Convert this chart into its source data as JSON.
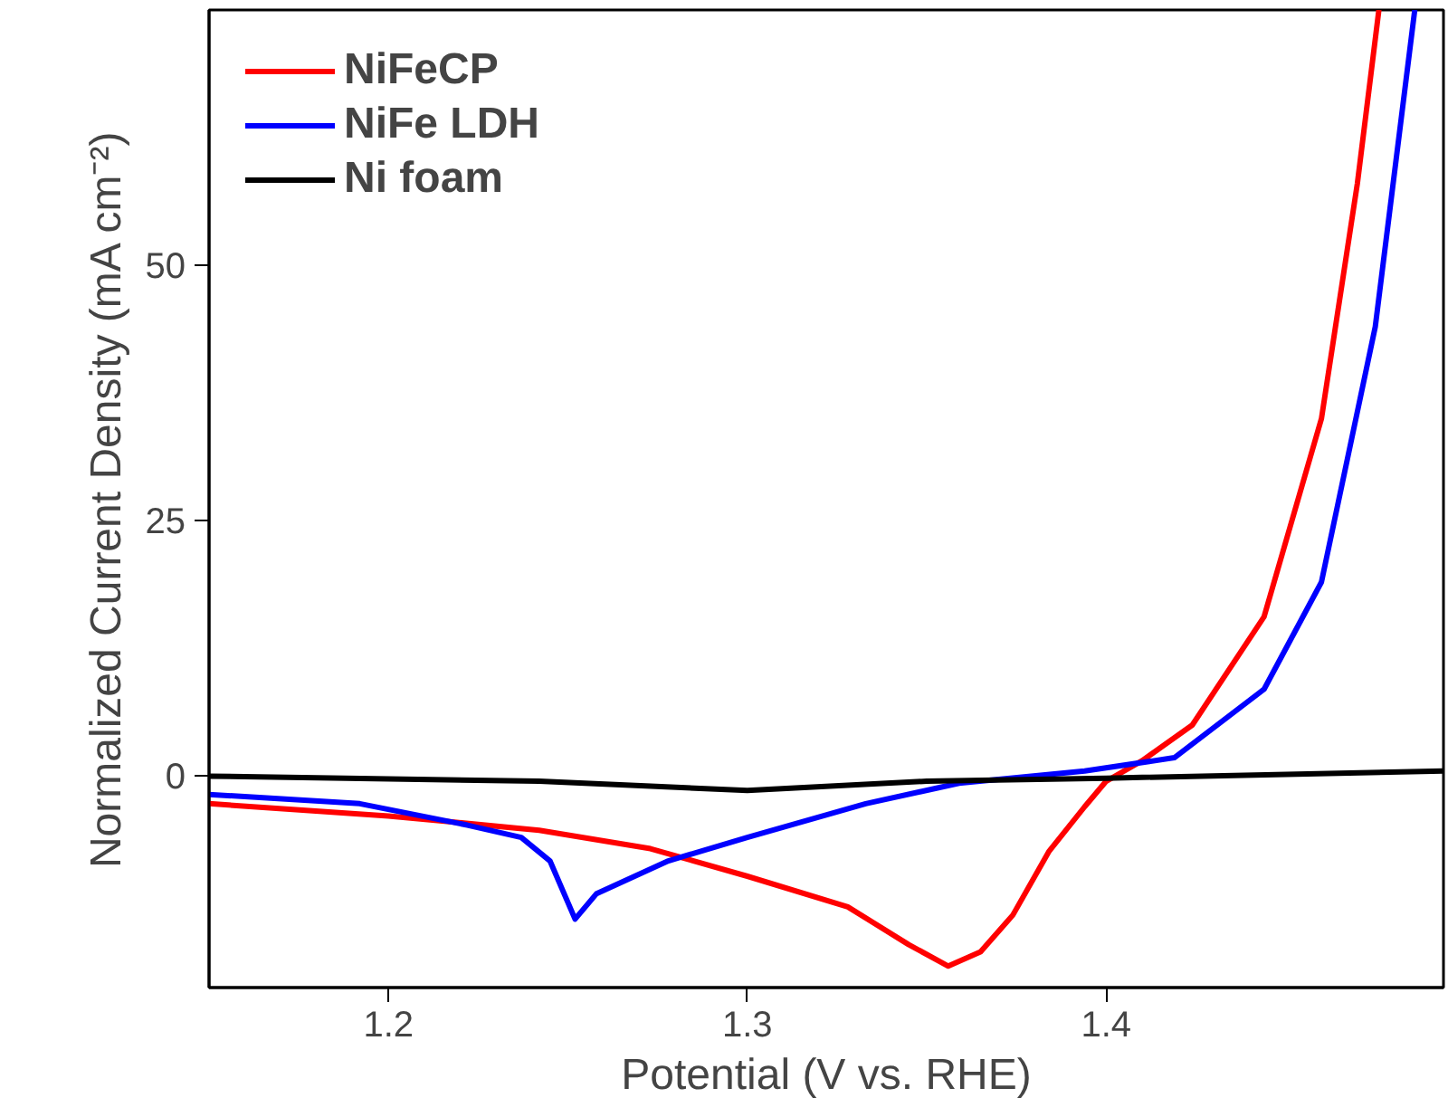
{
  "chart_data": {
    "type": "line",
    "xlabel": "Potential (V vs. RHE)",
    "ylabel": "Normalized Current Density (mA cm⁻²)",
    "xlim": [
      1.15,
      1.494
    ],
    "ylim": [
      -20.7,
      75
    ],
    "xticks": [
      1.2,
      1.3,
      1.4
    ],
    "yticks": [
      0,
      25,
      50
    ],
    "grid": false,
    "legend": "top left",
    "marker": "none",
    "line_style": "solid",
    "series": [
      {
        "name": "NiFeCP",
        "color": "#ff0000",
        "x": [
          1.15,
          1.2,
          1.242,
          1.273,
          1.3,
          1.328,
          1.345,
          1.356,
          1.365,
          1.374,
          1.384,
          1.394,
          1.4,
          1.41,
          1.424,
          1.444,
          1.46,
          1.47,
          1.476
        ],
        "values": [
          -2.7,
          -3.9,
          -5.3,
          -7.1,
          -9.8,
          -12.8,
          -16.5,
          -18.6,
          -17.2,
          -13.6,
          -7.4,
          -3,
          -0.5,
          1.5,
          5,
          15.6,
          35,
          58,
          75
        ]
      },
      {
        "name": "NiFe LDH",
        "color": "#0000ff",
        "x": [
          1.15,
          1.192,
          1.222,
          1.237,
          1.245,
          1.252,
          1.258,
          1.278,
          1.3,
          1.333,
          1.359,
          1.394,
          1.419,
          1.444,
          1.46,
          1.475,
          1.486
        ],
        "values": [
          -1.8,
          -2.7,
          -4.8,
          -6,
          -8.3,
          -14,
          -11.5,
          -8.3,
          -6,
          -2.7,
          -0.7,
          0.5,
          1.8,
          8.5,
          19,
          44,
          75
        ]
      },
      {
        "name": "Ni foam",
        "color": "#000000",
        "x": [
          1.15,
          1.242,
          1.3,
          1.35,
          1.4,
          1.494
        ],
        "values": [
          0,
          -0.5,
          -1.4,
          -0.5,
          -0.2,
          0.5
        ]
      }
    ]
  }
}
